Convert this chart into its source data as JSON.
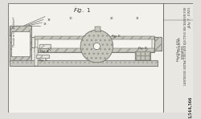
{
  "bg_color": "#e0dfdb",
  "drawing_bg": "#f2f1ec",
  "right_panel_bg": "#e8e7e2",
  "line_color": "#555550",
  "hatch_color": "#888880",
  "light_fill": "#e8e7e0",
  "dark_fill": "#b0afa8",
  "medium_fill": "#c8c7be",
  "white_fill": "#f5f4ef",
  "title_date": "July 7, 1925.",
  "inventor": "T. H. EICKHOFF",
  "desc1": "CARTRIDGE EXTRACTING AND EJECTING MECHANISM FOR",
  "desc2": "FIREARMS",
  "filed": "Filed Mar. 7, 1923",
  "patent_num": "1,544,566",
  "fig1_label": "Fig. 1",
  "fig4_label": "Fig. 4",
  "fig5_label": "Fig. 5",
  "fig6_label": "Fig. 6",
  "fig8_label": "Fig. 8"
}
